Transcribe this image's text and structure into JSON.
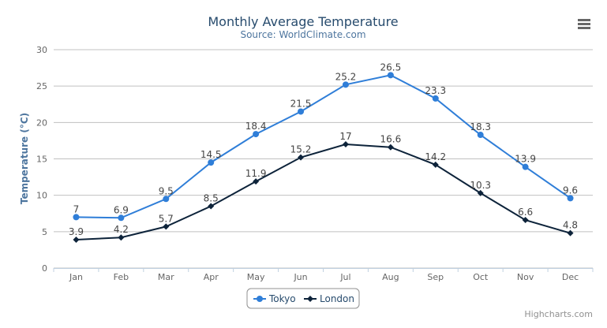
{
  "chart_data": {
    "type": "line",
    "title": "Monthly Average Temperature",
    "subtitle": "Source: WorldClimate.com",
    "ylabel": "Temperature (°C)",
    "xlabel": "",
    "ylim": [
      0,
      30
    ],
    "yticks": [
      0,
      5,
      10,
      15,
      20,
      25,
      30
    ],
    "grid": true,
    "legend_placement": "bottom-center",
    "categories": [
      "Jan",
      "Feb",
      "Mar",
      "Apr",
      "May",
      "Jun",
      "Jul",
      "Aug",
      "Sep",
      "Oct",
      "Nov",
      "Dec"
    ],
    "series": [
      {
        "name": "Tokyo",
        "color": "#2f7ed8",
        "marker": "circle",
        "values": [
          7.0,
          6.9,
          9.5,
          14.5,
          18.4,
          21.5,
          25.2,
          26.5,
          23.3,
          18.3,
          13.9,
          9.6
        ]
      },
      {
        "name": "London",
        "color": "#0d233a",
        "marker": "diamond",
        "values": [
          3.9,
          4.2,
          5.7,
          8.5,
          11.9,
          15.2,
          17.0,
          16.6,
          14.2,
          10.3,
          6.6,
          4.8
        ]
      }
    ]
  },
  "credits": "Highcharts.com",
  "menu_icon": "hamburger-menu-icon"
}
